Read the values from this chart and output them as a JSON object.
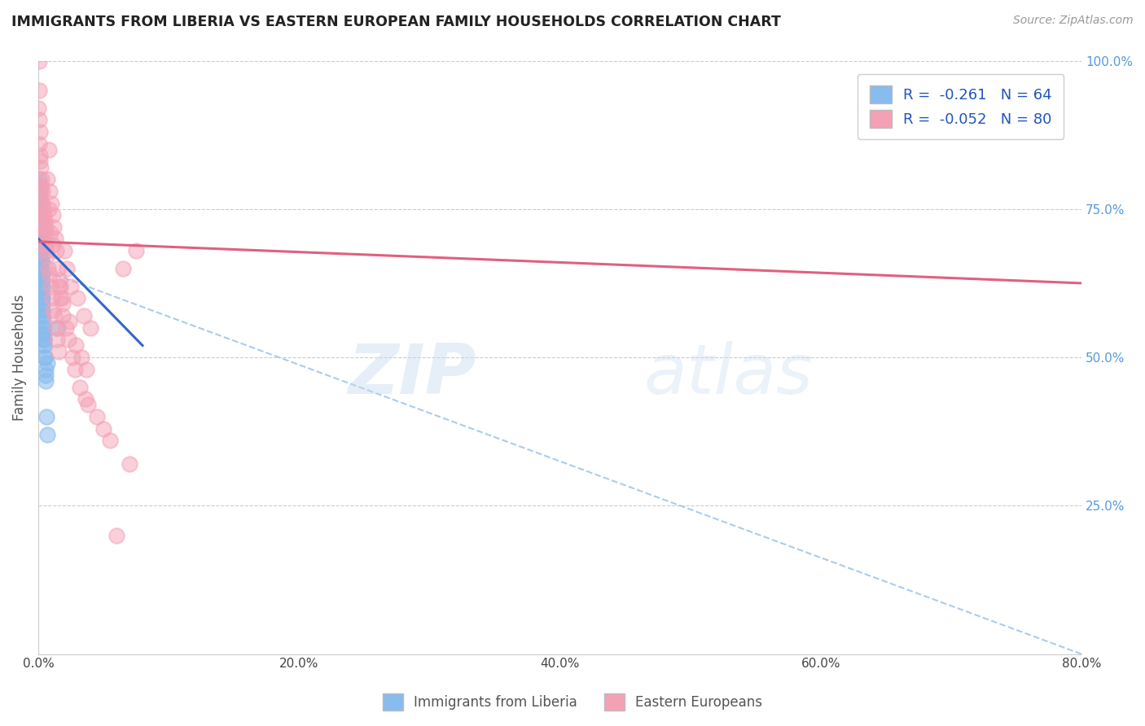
{
  "title": "IMMIGRANTS FROM LIBERIA VS EASTERN EUROPEAN FAMILY HOUSEHOLDS CORRELATION CHART",
  "source": "Source: ZipAtlas.com",
  "ylabel": "Family Households",
  "xlim": [
    0.0,
    80.0
  ],
  "ylim": [
    0.0,
    100.0
  ],
  "xticks": [
    0.0,
    20.0,
    40.0,
    60.0,
    80.0
  ],
  "yticks_right": [
    25.0,
    50.0,
    75.0,
    100.0
  ],
  "blue_R": -0.261,
  "blue_N": 64,
  "pink_R": -0.052,
  "pink_N": 80,
  "blue_color": "#88BBEE",
  "pink_color": "#F4A0B5",
  "blue_line_color": "#3366CC",
  "pink_line_color": "#E06080",
  "dashed_line_color": "#AACCEE",
  "legend_blue_label": "Immigrants from Liberia",
  "legend_pink_label": "Eastern Europeans",
  "watermark_zip": "ZIP",
  "watermark_atlas": "atlas",
  "blue_scatter_x": [
    0.05,
    0.08,
    0.1,
    0.12,
    0.15,
    0.18,
    0.2,
    0.22,
    0.25,
    0.28,
    0.3,
    0.32,
    0.35,
    0.38,
    0.4,
    0.45,
    0.5,
    0.55,
    0.6,
    0.05,
    0.07,
    0.09,
    0.11,
    0.14,
    0.17,
    0.21,
    0.26,
    0.31,
    0.36,
    0.05,
    0.06,
    0.08,
    0.13,
    0.16,
    0.23,
    0.27,
    0.33,
    0.37,
    0.42,
    0.04,
    0.07,
    0.19,
    0.24,
    0.29,
    0.34,
    0.39,
    0.47,
    0.52,
    0.58,
    0.035,
    0.065,
    0.095,
    0.145,
    0.185,
    0.215,
    0.255,
    0.295,
    0.345,
    0.385,
    0.635,
    0.685,
    1.5,
    0.43,
    0.68
  ],
  "blue_scatter_y": [
    68,
    67,
    72,
    69,
    71,
    73,
    65,
    68,
    60,
    63,
    66,
    64,
    58,
    62,
    55,
    53,
    50,
    48,
    46,
    78,
    75,
    74,
    70,
    68,
    67,
    65,
    61,
    57,
    54,
    80,
    76,
    73,
    71,
    69,
    64,
    62,
    59,
    56,
    53,
    66,
    70,
    68,
    63,
    60,
    58,
    54,
    52,
    50,
    47,
    79,
    77,
    72,
    70,
    68,
    66,
    63,
    60,
    57,
    55,
    40,
    37,
    55,
    52,
    49
  ],
  "pink_scatter_x": [
    0.05,
    0.1,
    0.15,
    0.2,
    0.25,
    0.3,
    0.35,
    0.4,
    0.5,
    0.6,
    0.7,
    0.8,
    0.9,
    1.0,
    1.1,
    1.2,
    1.3,
    1.4,
    1.5,
    1.6,
    1.7,
    1.8,
    2.0,
    2.2,
    2.5,
    3.0,
    3.5,
    4.0,
    0.03,
    0.08,
    0.13,
    0.18,
    0.23,
    0.28,
    0.33,
    0.38,
    0.45,
    0.55,
    0.65,
    0.75,
    0.85,
    0.95,
    1.05,
    1.15,
    1.25,
    1.35,
    1.45,
    1.55,
    1.7,
    1.9,
    2.1,
    2.3,
    2.6,
    2.8,
    3.2,
    3.6,
    3.8,
    4.5,
    5.0,
    5.5,
    6.0,
    6.5,
    7.0,
    7.5,
    0.06,
    0.12,
    0.21,
    0.31,
    0.42,
    0.52,
    0.65,
    0.8,
    0.95,
    1.1,
    1.6,
    1.85,
    2.4,
    2.9,
    3.3,
    3.7
  ],
  "pink_scatter_y": [
    100,
    95,
    88,
    82,
    80,
    78,
    76,
    75,
    73,
    72,
    80,
    85,
    78,
    76,
    74,
    72,
    70,
    68,
    65,
    63,
    62,
    60,
    68,
    65,
    62,
    60,
    57,
    55,
    92,
    86,
    84,
    78,
    76,
    74,
    72,
    70,
    74,
    71,
    68,
    65,
    64,
    62,
    60,
    58,
    57,
    55,
    53,
    51,
    60,
    57,
    55,
    53,
    50,
    48,
    45,
    43,
    42,
    40,
    38,
    36,
    20,
    65,
    32,
    68,
    90,
    83,
    79,
    73,
    72,
    69,
    67,
    75,
    71,
    69,
    62,
    59,
    56,
    52,
    50,
    48
  ],
  "blue_line_x": [
    0.0,
    8.0
  ],
  "blue_line_y": [
    70.0,
    52.0
  ],
  "pink_line_x": [
    0.0,
    80.0
  ],
  "pink_line_y": [
    69.5,
    62.5
  ],
  "dashed_line_x": [
    0.0,
    80.0
  ],
  "dashed_line_y": [
    65.0,
    0.0
  ]
}
